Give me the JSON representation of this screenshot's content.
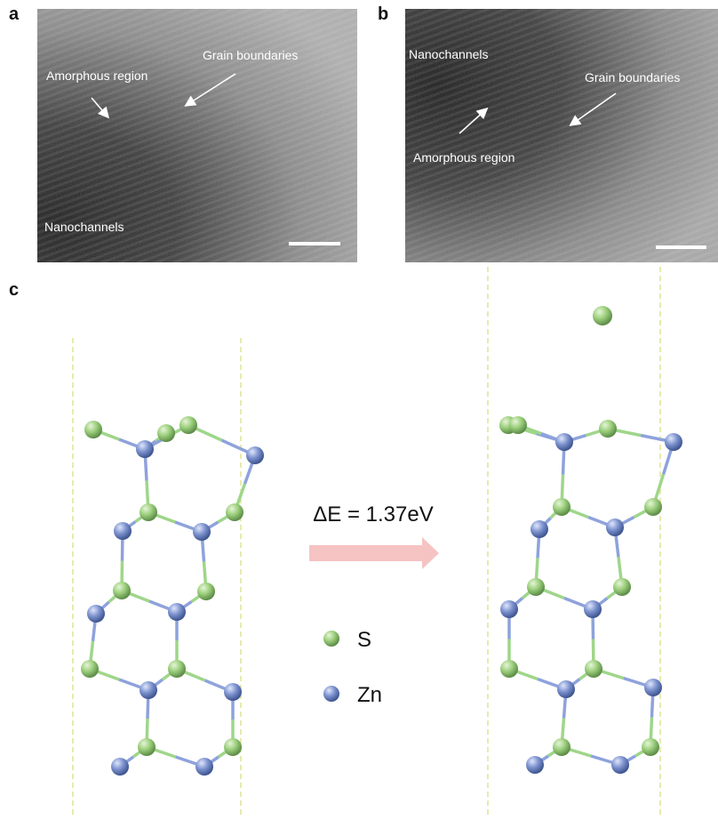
{
  "panels": [
    {
      "label": "a",
      "annotations": [
        "Amorphous region",
        "Grain boundaries",
        "Nanochannels"
      ]
    },
    {
      "label": "b",
      "annotations": [
        "Nanochannels",
        "Grain boundaries",
        "Amorphous region"
      ]
    },
    {
      "label": "c",
      "energy": "ΔE = 1.37eV",
      "legend": [
        "S",
        "Zn"
      ]
    }
  ]
}
